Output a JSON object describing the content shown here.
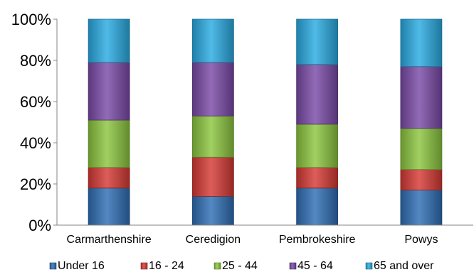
{
  "chart_data": {
    "type": "bar",
    "stacked": true,
    "percent_stacked": true,
    "categories": [
      "Carmarthenshire",
      "Ceredigion",
      "Pembrokeshire",
      "Powys"
    ],
    "series": [
      {
        "name": "Under 16",
        "color": "#2F6EB5",
        "values": [
          18,
          14,
          18,
          17
        ]
      },
      {
        "name": "16 - 24",
        "color": "#D63A35",
        "values": [
          10,
          19,
          10,
          10
        ]
      },
      {
        "name": "25 - 44",
        "color": "#8CC63F",
        "values": [
          23,
          20,
          21,
          20
        ]
      },
      {
        "name": "45 - 64",
        "color": "#7A4AA7",
        "values": [
          28,
          26,
          29,
          30
        ]
      },
      {
        "name": "65 and over",
        "color": "#29ABE2",
        "values": [
          21,
          21,
          22,
          23
        ]
      }
    ],
    "ylim": [
      0,
      100
    ],
    "yticks": [
      "0%",
      "20%",
      "40%",
      "60%",
      "80%",
      "100%"
    ],
    "grid": false,
    "legend_position": "bottom",
    "title": "",
    "xlabel": "",
    "ylabel": ""
  }
}
